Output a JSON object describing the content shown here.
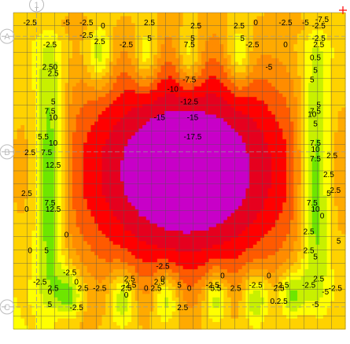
{
  "chart_data": {
    "type": "heatmap",
    "title": "",
    "xlabel": "",
    "ylabel": "",
    "colors": {
      "levels": [
        {
          "min": -99,
          "max": -15,
          "color": "#c800c8"
        },
        {
          "min": -15,
          "max": -12.5,
          "color": "#e6001e"
        },
        {
          "min": -12.5,
          "max": -10,
          "color": "#ff0000"
        },
        {
          "min": -10,
          "max": -7.5,
          "color": "#ff5a00"
        },
        {
          "min": -7.5,
          "max": -5,
          "color": "#ff8c00"
        },
        {
          "min": -5,
          "max": -2.5,
          "color": "#ffaa00"
        },
        {
          "min": -2.5,
          "max": 0,
          "color": "#ffd200"
        },
        {
          "min": 0,
          "max": 2.5,
          "color": "#ffff00"
        },
        {
          "min": 2.5,
          "max": 5,
          "color": "#c8f000"
        },
        {
          "min": 5,
          "max": 7.5,
          "color": "#6ee600"
        },
        {
          "min": 7.5,
          "max": 10,
          "color": "#00dc78"
        },
        {
          "min": 10,
          "max": 99,
          "color": "#00e6e6"
        }
      ],
      "grid_line": "#555555",
      "axis_line": "#999999",
      "marker": "#bbbbbb",
      "cross": "#ff0000"
    },
    "grid_markers": [
      {
        "label": "1",
        "axis": "x"
      },
      {
        "label": "A",
        "axis": "y"
      },
      {
        "label": "B",
        "axis": "y"
      },
      {
        "label": "C",
        "axis": "y"
      }
    ],
    "contour_labels": [
      {
        "text": "-2.5",
        "x": 0.05,
        "y": 0.97
      },
      {
        "text": "-5",
        "x": 0.16,
        "y": 0.97
      },
      {
        "text": "-2.5",
        "x": 0.22,
        "y": 0.97
      },
      {
        "text": "0",
        "x": 0.27,
        "y": 0.96
      },
      {
        "text": "2.5",
        "x": 0.41,
        "y": 0.97
      },
      {
        "text": "2.5",
        "x": 0.55,
        "y": 0.96
      },
      {
        "text": "2.5",
        "x": 0.68,
        "y": 0.96
      },
      {
        "text": "0",
        "x": 0.73,
        "y": 0.97
      },
      {
        "text": "-2.5",
        "x": 0.82,
        "y": 0.97
      },
      {
        "text": "-5",
        "x": 0.88,
        "y": 0.97
      },
      {
        "text": "-7.5",
        "x": 0.93,
        "y": 0.98
      },
      {
        "text": "-2.5",
        "x": 0.92,
        "y": 0.96
      },
      {
        "text": "-2.5",
        "x": 0.22,
        "y": 0.93
      },
      {
        "text": "2.5",
        "x": 0.26,
        "y": 0.91
      },
      {
        "text": "5",
        "x": 0.41,
        "y": 0.92
      },
      {
        "text": "5",
        "x": 0.54,
        "y": 0.92
      },
      {
        "text": "5",
        "x": 0.69,
        "y": 0.92
      },
      {
        "text": "-2.5",
        "x": 0.92,
        "y": 0.92
      },
      {
        "text": "-2.5",
        "x": 0.11,
        "y": 0.9
      },
      {
        "text": "-2.5",
        "x": 0.34,
        "y": 0.9
      },
      {
        "text": "7.5",
        "x": 0.53,
        "y": 0.9
      },
      {
        "text": "-2.5",
        "x": 0.72,
        "y": 0.9
      },
      {
        "text": "0",
        "x": 0.82,
        "y": 0.9
      },
      {
        "text": "2.5",
        "x": 0.92,
        "y": 0.9
      },
      {
        "text": "-5",
        "x": 0.77,
        "y": 0.83
      },
      {
        "text": "0.5",
        "x": 0.91,
        "y": 0.86
      },
      {
        "text": "2.50",
        "x": 0.11,
        "y": 0.83
      },
      {
        "text": "2.5",
        "x": 0.12,
        "y": 0.81
      },
      {
        "text": "5",
        "x": 0.91,
        "y": 0.82
      },
      {
        "text": "-7.5",
        "x": 0.53,
        "y": 0.79
      },
      {
        "text": "5",
        "x": 0.9,
        "y": 0.79
      },
      {
        "text": "-10",
        "x": 0.48,
        "y": 0.76
      },
      {
        "text": "-12.5",
        "x": 0.53,
        "y": 0.72
      },
      {
        "text": "-15",
        "x": 0.44,
        "y": 0.67
      },
      {
        "text": "-15",
        "x": 0.54,
        "y": 0.67
      },
      {
        "text": "-17.5",
        "x": 0.54,
        "y": 0.61
      },
      {
        "text": "5",
        "x": 0.12,
        "y": 0.72
      },
      {
        "text": "7.5",
        "x": 0.11,
        "y": 0.69
      },
      {
        "text": "10",
        "x": 0.12,
        "y": 0.67
      },
      {
        "text": "7.5",
        "x": 0.91,
        "y": 0.69
      },
      {
        "text": "10",
        "x": 0.9,
        "y": 0.68
      },
      {
        "text": "5",
        "x": 0.92,
        "y": 0.71
      },
      {
        "text": "5",
        "x": 0.91,
        "y": 0.65
      },
      {
        "text": "5.5",
        "x": 0.09,
        "y": 0.61
      },
      {
        "text": "10",
        "x": 0.12,
        "y": 0.59
      },
      {
        "text": "2.5",
        "x": 0.05,
        "y": 0.56
      },
      {
        "text": "7.5",
        "x": 0.1,
        "y": 0.56
      },
      {
        "text": "7.5",
        "x": 0.91,
        "y": 0.59
      },
      {
        "text": "10",
        "x": 0.91,
        "y": 0.57
      },
      {
        "text": "7.5",
        "x": 0.91,
        "y": 0.54
      },
      {
        "text": "2.5",
        "x": 0.96,
        "y": 0.55
      },
      {
        "text": "12.5",
        "x": 0.12,
        "y": 0.52
      },
      {
        "text": "2.5",
        "x": 0.95,
        "y": 0.49
      },
      {
        "text": "2.5",
        "x": 0.97,
        "y": 0.44
      },
      {
        "text": "2.5",
        "x": 0.04,
        "y": 0.43
      },
      {
        "text": "5",
        "x": 0.95,
        "y": 0.43
      },
      {
        "text": "7.5",
        "x": 0.11,
        "y": 0.4
      },
      {
        "text": "12.5",
        "x": 0.12,
        "y": 0.38
      },
      {
        "text": "0",
        "x": 0.04,
        "y": 0.38
      },
      {
        "text": "7.5",
        "x": 0.9,
        "y": 0.4
      },
      {
        "text": "10",
        "x": 0.91,
        "y": 0.38
      },
      {
        "text": "0",
        "x": 0.93,
        "y": 0.36
      },
      {
        "text": "2.5",
        "x": 0.89,
        "y": 0.31
      },
      {
        "text": "0",
        "x": 0.16,
        "y": 0.3
      },
      {
        "text": "5",
        "x": 0.98,
        "y": 0.28
      },
      {
        "text": "0",
        "x": 0.05,
        "y": 0.25
      },
      {
        "text": "5",
        "x": 0.1,
        "y": 0.25
      },
      {
        "text": "2.5",
        "x": 0.89,
        "y": 0.25
      },
      {
        "text": "5",
        "x": 0.91,
        "y": 0.23
      },
      {
        "text": "-2.5",
        "x": 0.45,
        "y": 0.2
      },
      {
        "text": "-2.5",
        "x": 0.17,
        "y": 0.18
      },
      {
        "text": "2.5",
        "x": 0.92,
        "y": 0.16
      },
      {
        "text": "0",
        "x": 0.45,
        "y": 0.16
      },
      {
        "text": "2.5",
        "x": 0.35,
        "y": 0.16
      },
      {
        "text": "2.5",
        "x": 0.44,
        "y": 0.15
      },
      {
        "text": "0",
        "x": 0.63,
        "y": 0.17
      },
      {
        "text": "0",
        "x": 0.77,
        "y": 0.17
      },
      {
        "text": "-2.5",
        "x": 0.08,
        "y": 0.15
      },
      {
        "text": "0",
        "x": 0.19,
        "y": 0.15
      },
      {
        "text": "-2.5",
        "x": 0.35,
        "y": 0.14
      },
      {
        "text": "-2.5",
        "x": 0.6,
        "y": 0.14
      },
      {
        "text": "-2.5",
        "x": 0.73,
        "y": 0.14
      },
      {
        "text": "-2.5",
        "x": 0.81,
        "y": 0.14
      },
      {
        "text": "2.5",
        "x": 0.12,
        "y": 0.13
      },
      {
        "text": "2.5",
        "x": 0.21,
        "y": 0.13
      },
      {
        "text": "-2.5",
        "x": 0.26,
        "y": 0.13
      },
      {
        "text": "2.5",
        "x": 0.34,
        "y": 0.13
      },
      {
        "text": "0",
        "x": 0.4,
        "y": 0.13
      },
      {
        "text": "2.5",
        "x": 0.43,
        "y": 0.13
      },
      {
        "text": "5",
        "x": 0.5,
        "y": 0.14
      },
      {
        "text": "0",
        "x": 0.53,
        "y": 0.13
      },
      {
        "text": "5.5",
        "x": 0.61,
        "y": 0.13
      },
      {
        "text": "2.5",
        "x": 0.67,
        "y": 0.13
      },
      {
        "text": "2.5",
        "x": 0.8,
        "y": 0.13
      },
      {
        "text": "-2.5",
        "x": 0.89,
        "y": 0.14
      },
      {
        "text": "-5",
        "x": 0.94,
        "y": 0.12
      },
      {
        "text": "-2.5",
        "x": 0.97,
        "y": 0.13
      },
      {
        "text": "0",
        "x": 0.11,
        "y": 0.12
      },
      {
        "text": "0",
        "x": 0.34,
        "y": 0.11
      },
      {
        "text": "5",
        "x": 0.11,
        "y": 0.08
      },
      {
        "text": "0.2.5",
        "x": 0.8,
        "y": 0.09
      },
      {
        "text": "-2.5",
        "x": 0.19,
        "y": 0.07
      },
      {
        "text": "2.5",
        "x": 0.51,
        "y": 0.07
      },
      {
        "text": "-5",
        "x": 0.91,
        "y": 0.08
      }
    ]
  }
}
